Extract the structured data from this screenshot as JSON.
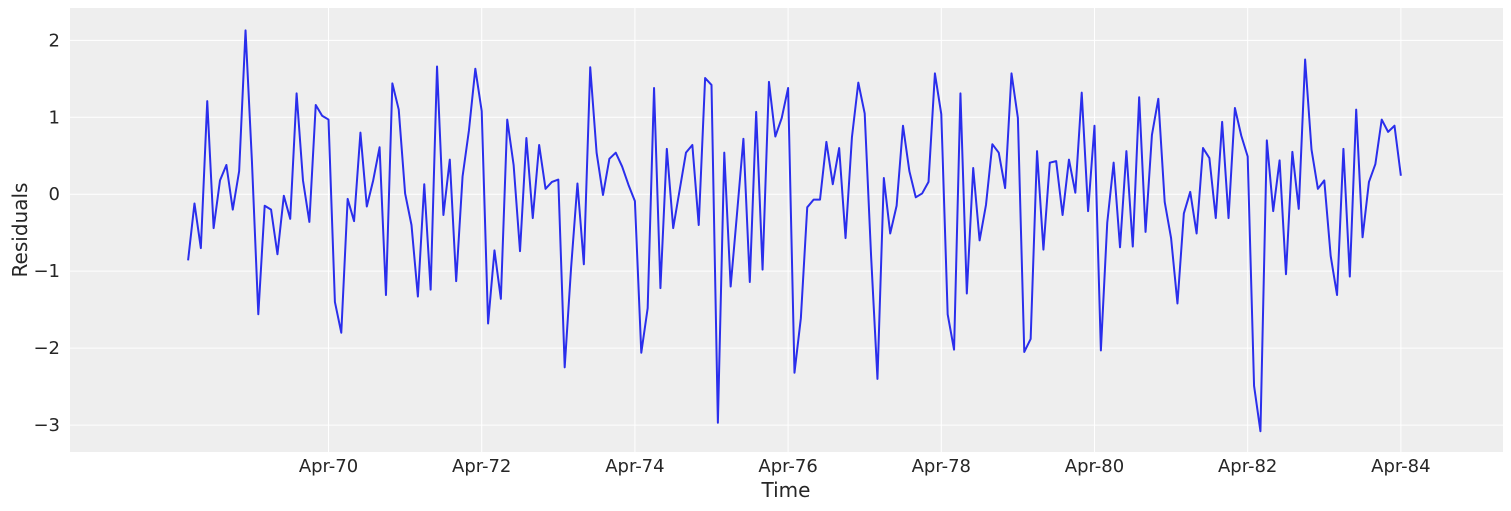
{
  "chart_data": {
    "type": "line",
    "title": "",
    "xlabel": "Time",
    "ylabel": "Residuals",
    "grid": true,
    "colors": {
      "background": "#eeeeee",
      "grid": "#ffffff",
      "line": "#2a2eec",
      "text": "#262626"
    },
    "xlim": [
      -18.5,
      206
    ],
    "ylim": [
      -3.35,
      2.42
    ],
    "x_ticks": [
      {
        "index": 22,
        "label": "Apr-70"
      },
      {
        "index": 46,
        "label": "Apr-72"
      },
      {
        "index": 70,
        "label": "Apr-74"
      },
      {
        "index": 94,
        "label": "Apr-76"
      },
      {
        "index": 118,
        "label": "Apr-78"
      },
      {
        "index": 142,
        "label": "Apr-80"
      },
      {
        "index": 166,
        "label": "Apr-82"
      },
      {
        "index": 190,
        "label": "Apr-84"
      }
    ],
    "y_ticks": [
      {
        "value": 2,
        "label": "2"
      },
      {
        "value": 1,
        "label": "1"
      },
      {
        "value": 0,
        "label": "0"
      },
      {
        "value": -1,
        "label": "−1"
      },
      {
        "value": -2,
        "label": "−2"
      },
      {
        "value": -3,
        "label": "−3"
      }
    ],
    "series": [
      {
        "values": [
          -0.86,
          -0.12,
          -0.7,
          1.21,
          -0.44,
          0.18,
          0.38,
          -0.2,
          0.3,
          2.13,
          0.43,
          -1.56,
          -0.15,
          -0.2,
          -0.78,
          -0.02,
          -0.32,
          1.31,
          0.18,
          -0.36,
          1.16,
          1.02,
          0.97,
          -1.4,
          -1.8,
          -0.06,
          -0.35,
          0.8,
          -0.16,
          0.18,
          0.61,
          -1.31,
          1.44,
          1.1,
          0.01,
          -0.4,
          -1.33,
          0.13,
          -1.24,
          1.66,
          -0.27,
          0.45,
          -1.13,
          0.23,
          0.83,
          1.63,
          1.08,
          -1.68,
          -0.73,
          -1.36,
          0.97,
          0.38,
          -0.74,
          0.73,
          -0.31,
          0.64,
          0.07,
          0.16,
          0.19,
          -2.25,
          -0.96,
          0.14,
          -0.91,
          1.65,
          0.54,
          -0.01,
          0.46,
          0.54,
          0.36,
          0.12,
          -0.09,
          -2.06,
          -1.48,
          1.38,
          -1.22,
          0.59,
          -0.44,
          0.05,
          0.54,
          0.64,
          -0.4,
          1.51,
          1.42,
          -2.97,
          0.54,
          -1.2,
          -0.25,
          0.72,
          -1.14,
          1.07,
          -0.98,
          1.46,
          0.75,
          0.99,
          1.38,
          -2.32,
          -1.61,
          -0.17,
          -0.07,
          -0.07,
          0.68,
          0.13,
          0.6,
          -0.57,
          0.74,
          1.45,
          1.05,
          -0.8,
          -2.4,
          0.21,
          -0.51,
          -0.15,
          0.89,
          0.3,
          -0.04,
          0.01,
          0.16,
          1.57,
          1.04,
          -1.56,
          -2.02,
          1.31,
          -1.29,
          0.34,
          -0.6,
          -0.14,
          0.65,
          0.54,
          0.08,
          1.57,
          0.99,
          -2.05,
          -1.88,
          0.56,
          -0.72,
          0.41,
          0.43,
          -0.27,
          0.45,
          0.02,
          1.32,
          -0.22,
          0.89,
          -2.03,
          -0.37,
          0.41,
          -0.69,
          0.56,
          -0.68,
          1.26,
          -0.49,
          0.77,
          1.24,
          -0.1,
          -0.57,
          -1.42,
          -0.25,
          0.03,
          -0.51,
          0.6,
          0.47,
          -0.31,
          0.94,
          -0.31,
          1.12,
          0.76,
          0.49,
          -2.49,
          -3.08,
          0.7,
          -0.22,
          0.44,
          -1.04,
          0.55,
          -0.19,
          1.75,
          0.58,
          0.07,
          0.18,
          -0.8,
          -1.31,
          0.59,
          -1.07,
          1.1,
          -0.56,
          0.16,
          0.39,
          0.97,
          0.81,
          0.89,
          0.24
        ]
      }
    ]
  }
}
